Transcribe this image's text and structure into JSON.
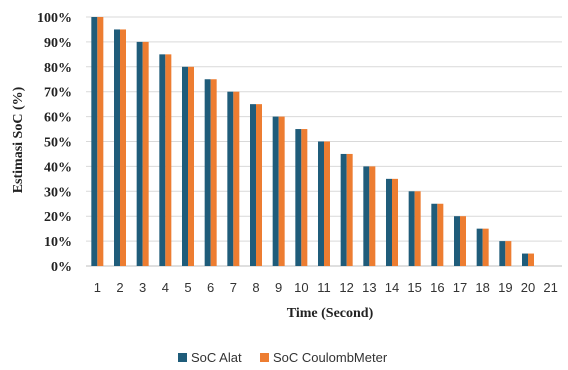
{
  "chart_data": {
    "type": "bar",
    "xlabel": "Time (Second)",
    "ylabel": "Estimasi SoC (%)",
    "categories": [
      "1",
      "2",
      "3",
      "4",
      "5",
      "6",
      "7",
      "8",
      "9",
      "10",
      "11",
      "12",
      "13",
      "14",
      "15",
      "16",
      "17",
      "18",
      "19",
      "20",
      "21"
    ],
    "series": [
      {
        "name": "SoC Alat",
        "color": "#1f5c7a",
        "values": [
          100,
          95,
          90,
          85,
          80,
          75,
          70,
          65,
          60,
          55,
          50,
          45,
          40,
          35,
          30,
          25,
          20,
          15,
          10,
          5,
          null
        ]
      },
      {
        "name": "SoC CoulombMeter",
        "color": "#ed7d31",
        "values": [
          100,
          95,
          90,
          85,
          80,
          75,
          70,
          65,
          60,
          55,
          50,
          45,
          40,
          35,
          30,
          25,
          20,
          15,
          10,
          5,
          null
        ]
      }
    ],
    "ylim": [
      0,
      100
    ],
    "yticks": [
      0,
      10,
      20,
      30,
      40,
      50,
      60,
      70,
      80,
      90,
      100
    ],
    "ytick_labels": [
      "0%",
      "10%",
      "20%",
      "30%",
      "40%",
      "50%",
      "60%",
      "70%",
      "80%",
      "90%",
      "100%"
    ],
    "grid": true,
    "legend_position": "bottom"
  }
}
